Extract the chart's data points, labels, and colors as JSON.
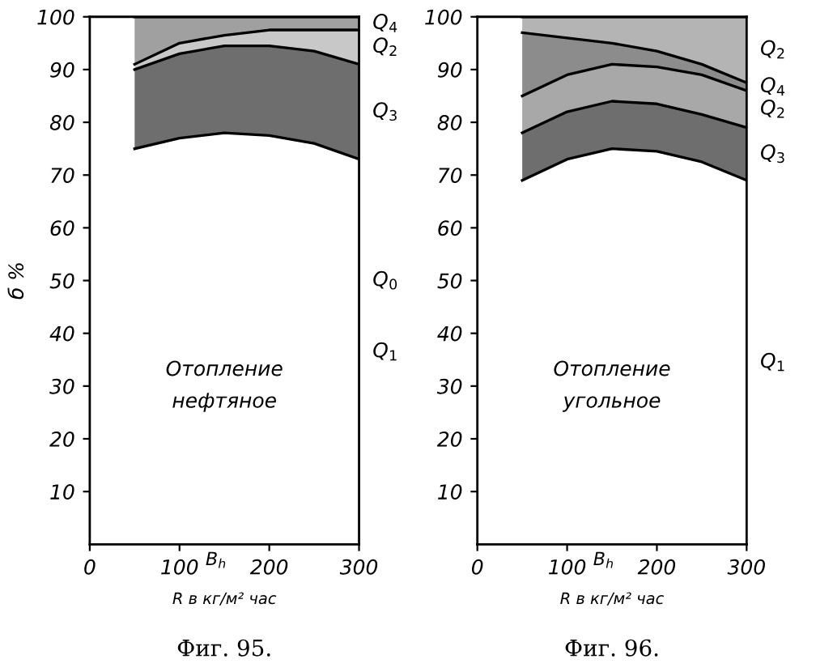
{
  "chart_data": [
    {
      "type": "area",
      "stacked": true,
      "x": [
        50,
        100,
        150,
        200,
        250,
        300
      ],
      "xlim": [
        0,
        300
      ],
      "ylim": [
        0,
        100
      ],
      "xticks": [
        0,
        100,
        200,
        300
      ],
      "yticks": [
        10,
        20,
        30,
        40,
        50,
        60,
        70,
        80,
        90,
        100
      ],
      "ylabel": "б %",
      "xlabel": "R в кг/м² час",
      "grid": false,
      "legend": false,
      "series": [
        {
          "color": "#ffffff",
          "values": [
            75,
            77,
            78,
            77.5,
            76,
            73
          ]
        },
        {
          "color": "#6e6e6e",
          "values": [
            15,
            16,
            16.5,
            17,
            17.5,
            18
          ]
        },
        {
          "color": "#c8c8c8",
          "values": [
            1,
            2,
            2,
            3,
            4,
            6.5
          ]
        },
        {
          "color": "#a0a0a0",
          "values": [
            9,
            5,
            3.5,
            2.5,
            2.5,
            2.5
          ]
        }
      ],
      "annotations": [
        "Отопление\nнефтяное",
        "B$_{h}$",
        "Фиг. 95.",
        "Q$_{4}$",
        "Q$_{2}$",
        "Q$_{3}$",
        "Q$_{1}$",
        "Q$_{0}$"
      ]
    },
    {
      "type": "area",
      "stacked": true,
      "x": [
        50,
        100,
        150,
        200,
        250,
        300
      ],
      "xlim": [
        0,
        300
      ],
      "ylim": [
        0,
        100
      ],
      "xticks": [
        0,
        100,
        200,
        300
      ],
      "yticks": [
        10,
        20,
        30,
        40,
        50,
        60,
        70,
        80,
        90,
        100
      ],
      "xlabel": "R в кг/м² час",
      "grid": false,
      "legend": false,
      "series": [
        {
          "color": "#ffffff",
          "values": [
            69,
            73,
            75,
            74.5,
            72.5,
            69
          ]
        },
        {
          "color": "#6e6e6e",
          "values": [
            9,
            9,
            9,
            9,
            9,
            10
          ]
        },
        {
          "color": "#a8a8a8",
          "values": [
            7,
            7,
            7,
            7,
            7.5,
            7
          ]
        },
        {
          "color": "#8c8c8c",
          "values": [
            12,
            7,
            4,
            3,
            2,
            1.5
          ]
        },
        {
          "color": "#b4b4b4",
          "values": [
            3,
            4,
            5,
            6.5,
            9,
            12.5
          ]
        }
      ],
      "annotations": [
        "Отопление\nугольное",
        "B$_{h}$",
        "Фиг. 96.",
        "Q$_{2}$",
        "Q$_{4}$",
        "Q$_{2}$",
        "Q$_{3}$",
        "Q$_{1}$"
      ]
    }
  ]
}
